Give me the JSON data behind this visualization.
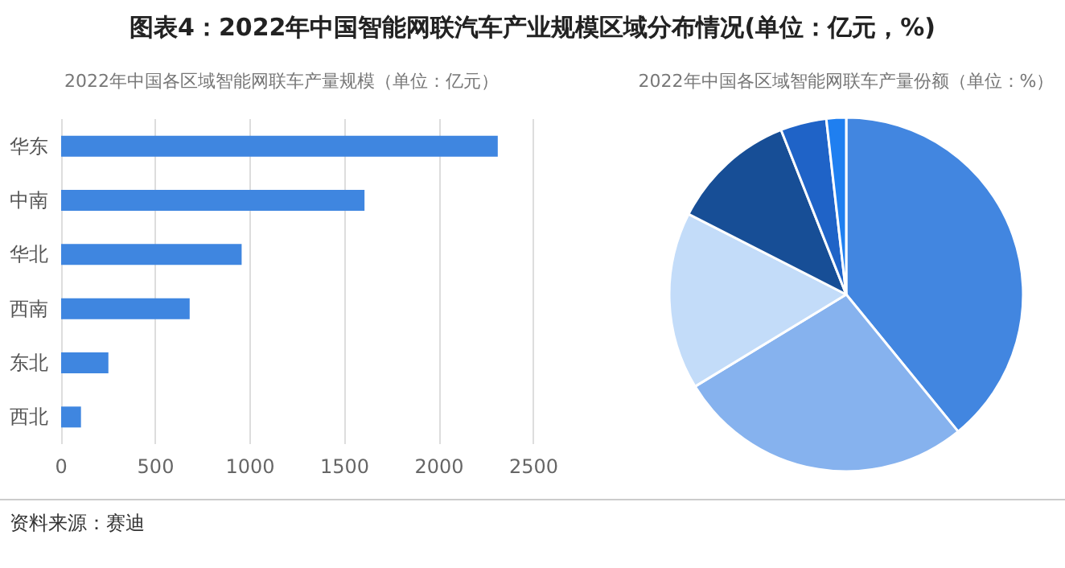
{
  "chart_data": [
    {
      "type": "bar",
      "title": "图表4：2022年中国智能网联汽车产业规模区域分布情况(单位：亿元，%)",
      "subtitle": "2022年中国各区域智能网联车产量规模（单位：亿元）",
      "orientation": "horizontal",
      "categories": [
        "华东",
        "中南",
        "华北",
        "西南",
        "东北",
        "西北"
      ],
      "values": [
        2310,
        1605,
        955,
        680,
        250,
        105
      ],
      "color": "#3f86e0",
      "xlim": [
        0,
        2500
      ],
      "xticks": [
        0,
        500,
        1000,
        1500,
        2000,
        2500
      ],
      "grid": "x",
      "annotations": [
        "资料来源：赛迪"
      ]
    },
    {
      "type": "pie",
      "title": "2022年中国各区域智能网联车产量份额（单位：%）",
      "categories": [
        null,
        null,
        null,
        null,
        null,
        null
      ],
      "values": [
        39.1,
        27.2,
        16.2,
        11.5,
        4.2,
        1.8
      ],
      "colors": [
        "#4286e0",
        "#86b2ee",
        "#c3dcf9",
        "#174e96",
        "#1f63c7",
        "#1f7ff0"
      ]
    }
  ]
}
